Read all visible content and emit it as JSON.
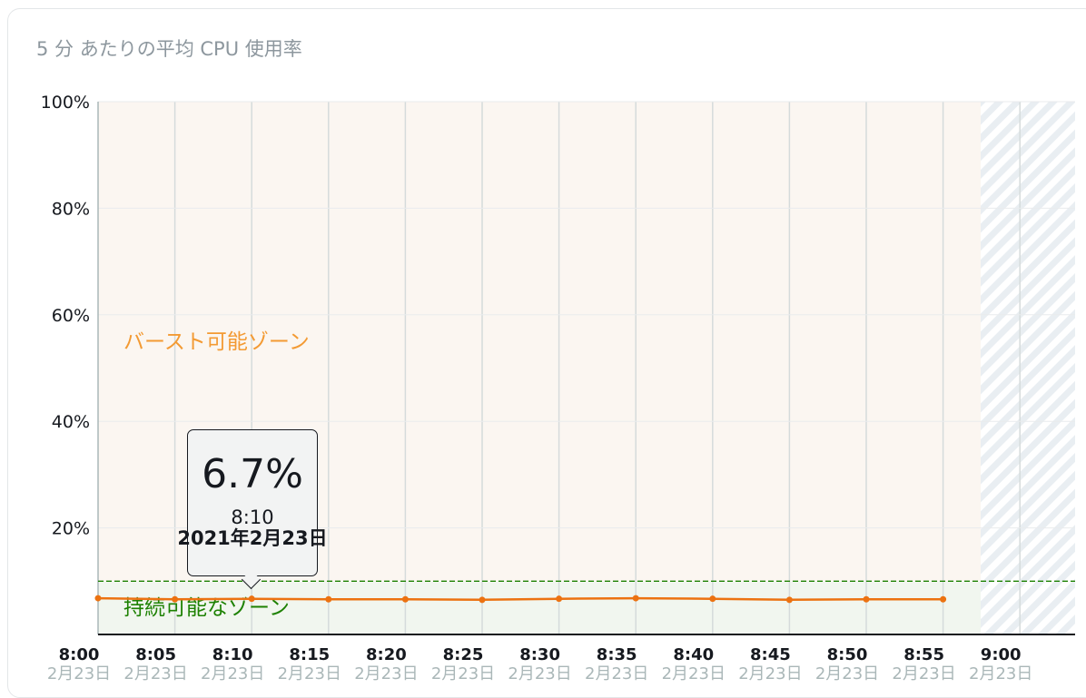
{
  "card": {
    "title": "5 分 あたりの平均 CPU 使用率"
  },
  "chart_data": {
    "type": "line",
    "y_ticks": [
      "100%",
      "80%",
      "60%",
      "40%",
      "20%"
    ],
    "ylim": [
      0,
      100
    ],
    "x_time_labels": [
      "8:00",
      "8:05",
      "8:10",
      "8:15",
      "8:20",
      "8:25",
      "8:30",
      "8:35",
      "8:40",
      "8:45",
      "8:50",
      "8:55",
      "9:00"
    ],
    "x_date_label": "2月23日",
    "series": [
      {
        "color": "#ec7211",
        "x": [
          "8:00",
          "8:05",
          "8:10",
          "8:15",
          "8:20",
          "8:25",
          "8:30",
          "8:35",
          "8:40",
          "8:45",
          "8:50",
          "8:55"
        ],
        "values": [
          6.8,
          6.6,
          6.7,
          6.6,
          6.6,
          6.5,
          6.7,
          6.8,
          6.7,
          6.5,
          6.6,
          6.6
        ]
      }
    ],
    "baseline_threshold": 10,
    "zones": {
      "burst_label": "バースト可能ゾーン",
      "sustainable_label": "持続可能なゾーン",
      "burst_color": "#fbf6f1",
      "sustainable_color": "#f1f6ef",
      "threshold_color": "#1d8102"
    },
    "grid": true,
    "future_region_hatched": true
  },
  "tooltip": {
    "value": "6.7%",
    "time": "8:10",
    "date": "2021年2月23日"
  }
}
